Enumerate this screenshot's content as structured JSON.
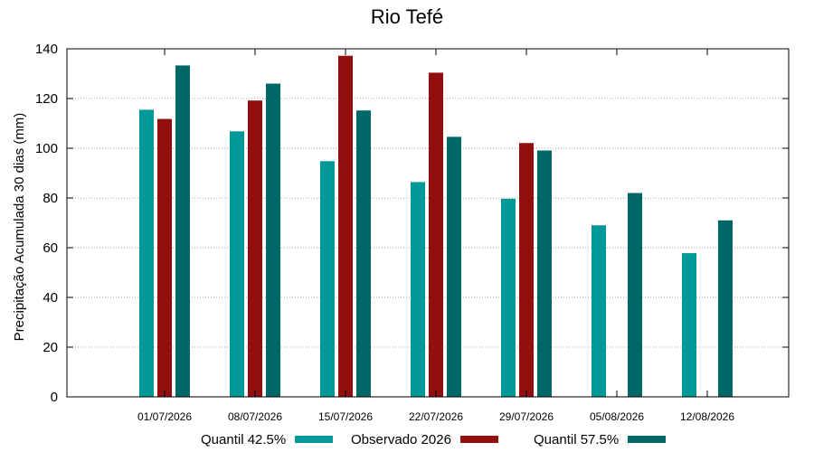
{
  "chart_data": {
    "type": "bar",
    "title": "Rio Tefé",
    "ylabel": "Precipitação Acumulada 30 dias (mm)",
    "xlabel": "",
    "ylim": [
      0,
      140
    ],
    "yticks": [
      0,
      20,
      40,
      60,
      80,
      100,
      120,
      140
    ],
    "grid": true,
    "legend_position": "bottom",
    "categories": [
      "01/07/2026",
      "08/07/2026",
      "15/07/2026",
      "22/07/2026",
      "29/07/2026",
      "05/08/2026",
      "12/08/2026"
    ],
    "series": [
      {
        "name": "Quantil 42.5%",
        "color": "#009999",
        "values": [
          115.5,
          106.8,
          94.8,
          86.4,
          79.7,
          69.0,
          57.8
        ]
      },
      {
        "name": "Observado 2026",
        "color": "#910f0f",
        "values": [
          111.8,
          119.2,
          137.2,
          130.4,
          102.1,
          null,
          null
        ]
      },
      {
        "name": "Quantil 57.5%",
        "color": "#006767",
        "values": [
          133.3,
          126.0,
          115.2,
          104.6,
          99.1,
          82.0,
          71.0
        ]
      }
    ]
  }
}
